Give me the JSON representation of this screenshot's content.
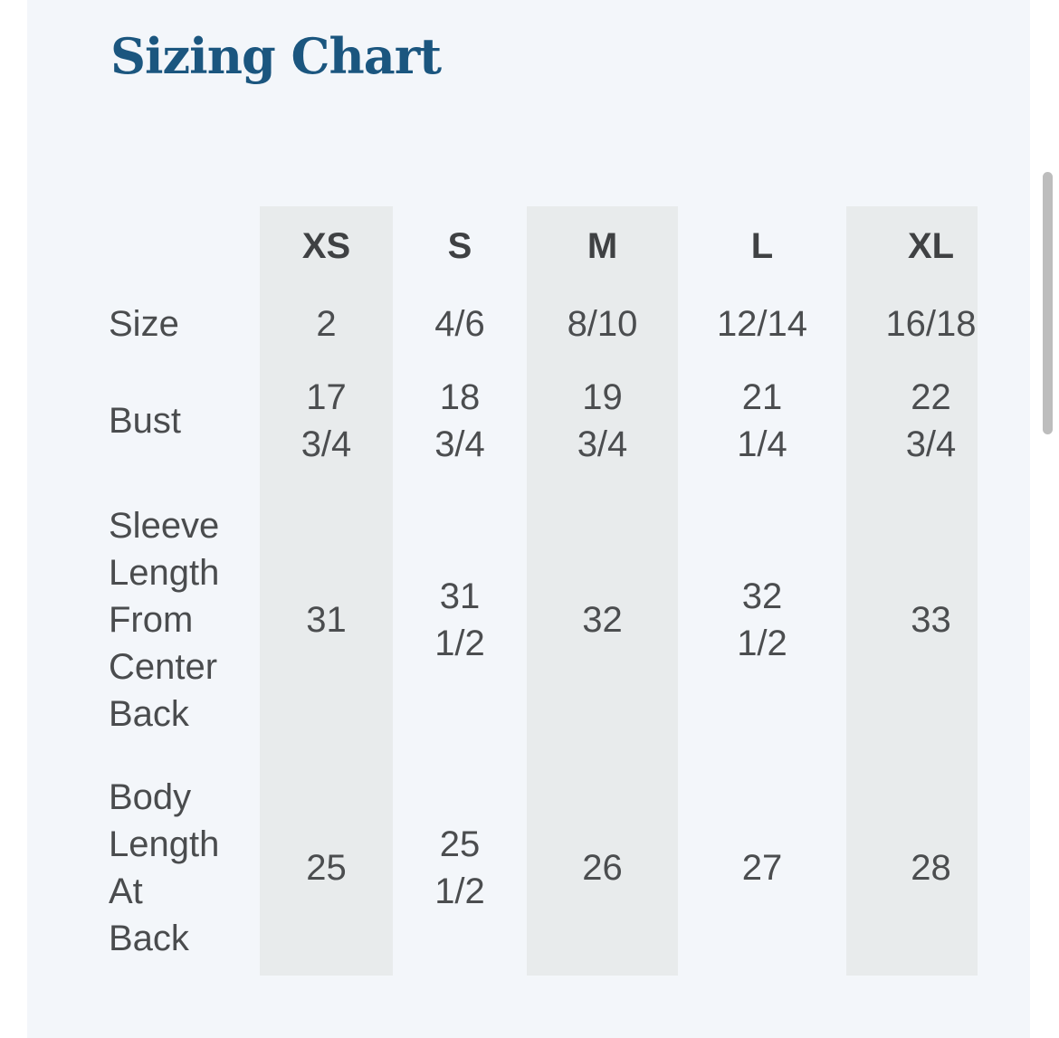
{
  "page": {
    "title": "Sizing Chart"
  },
  "colors": {
    "page_background": "#ffffff",
    "panel_background": "#f3f6fa",
    "column_band": "#e8ebec",
    "title_text": "#1b567f",
    "body_text": "#4b4d4f",
    "header_text": "#3f4143",
    "scrollbar_thumb": "#bdbdbd"
  },
  "sizing_table": {
    "columns": [
      "XS",
      "S",
      "M",
      "L",
      "XL"
    ],
    "rows": [
      {
        "label": "Size",
        "values": [
          "2",
          "4/6",
          "8/10",
          "12/14",
          "16/18"
        ]
      },
      {
        "label": "Bust",
        "values": [
          "17 3/4",
          "18 3/4",
          "19 3/4",
          "21 1/4",
          "22 3/4"
        ]
      },
      {
        "label": "Sleeve Length From Center Back",
        "values": [
          "31",
          "31 1/2",
          "32",
          "32 1/2",
          "33"
        ]
      },
      {
        "label": "Body Length At Back",
        "values": [
          "25",
          "25 1/2",
          "26",
          "27",
          "28"
        ]
      }
    ]
  }
}
